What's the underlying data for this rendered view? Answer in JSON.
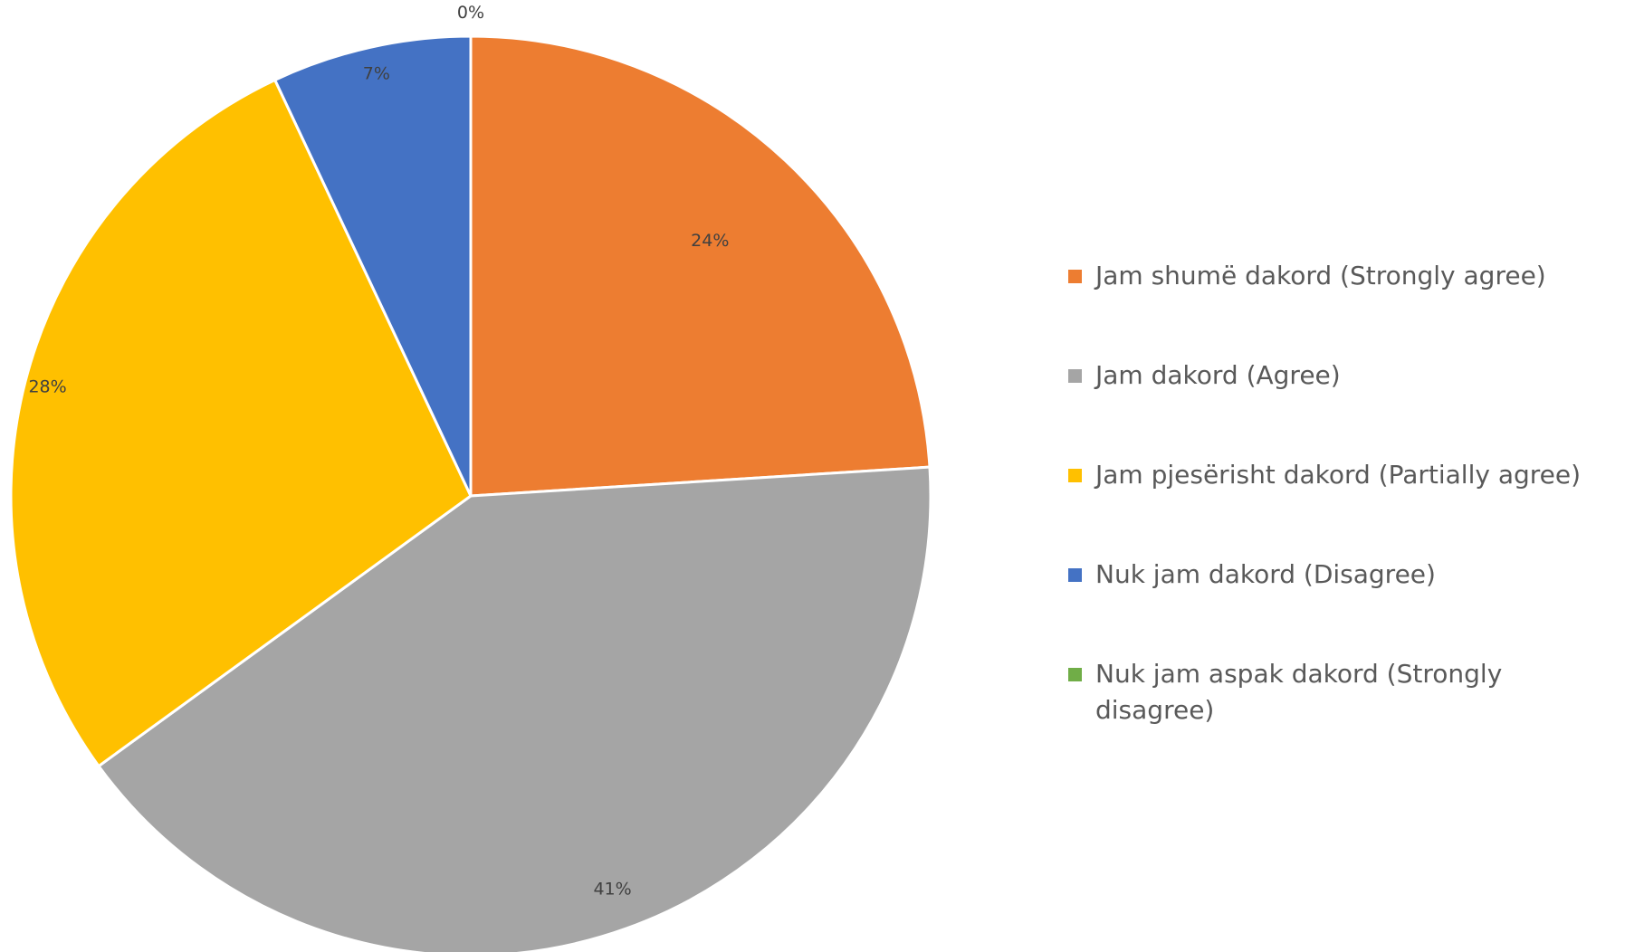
{
  "chart_data": {
    "type": "pie",
    "title": "",
    "categories": [
      "Jam shumë dakord (Strongly agree)",
      "Jam dakord (Agree)",
      "Jam pjesërisht dakord (Partially agree)",
      "Nuk jam dakord (Disagree)",
      "Nuk jam aspak dakord (Strongly disagree)"
    ],
    "values": [
      24,
      41,
      28,
      7,
      0
    ],
    "value_labels": [
      "24%",
      "41%",
      "28%",
      "7%",
      "0%"
    ],
    "colors": [
      "#ED7D31",
      "#A5A5A5",
      "#FFC000",
      "#4472C4",
      "#70AD47"
    ],
    "start": "12 o'clock, clockwise",
    "legend_position": "right"
  }
}
